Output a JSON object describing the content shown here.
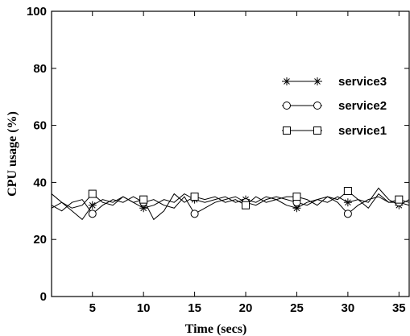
{
  "chart_data": {
    "type": "line",
    "title": "",
    "xlabel": "Time (secs)",
    "ylabel": "CPU usage (%)",
    "xlim": [
      1,
      36
    ],
    "ylim": [
      0,
      100
    ],
    "xticks": [
      5,
      10,
      15,
      20,
      25,
      30,
      35
    ],
    "yticks": [
      0,
      20,
      40,
      60,
      80,
      100
    ],
    "grid": false,
    "legend_position": "right, upper-middle",
    "x": [
      1,
      2,
      3,
      4,
      5,
      6,
      7,
      8,
      9,
      10,
      11,
      12,
      13,
      14,
      15,
      16,
      17,
      18,
      19,
      20,
      21,
      22,
      23,
      24,
      25,
      26,
      27,
      28,
      29,
      30,
      31,
      32,
      33,
      34,
      35,
      36
    ],
    "series": [
      {
        "name": "service3",
        "marker": "asterisk",
        "values": [
          31,
          33,
          30,
          27,
          32,
          34,
          33,
          35,
          33,
          31,
          32,
          34,
          33,
          36,
          34,
          33,
          34,
          35,
          33,
          34,
          33,
          35,
          34,
          32,
          31,
          33,
          34,
          33,
          35,
          33,
          34,
          33,
          38,
          34,
          32,
          34
        ]
      },
      {
        "name": "service2",
        "marker": "circle",
        "values": [
          32,
          30,
          33,
          34,
          29,
          32,
          34,
          33,
          35,
          33,
          34,
          32,
          31,
          35,
          29,
          31,
          33,
          34,
          35,
          33,
          32,
          34,
          35,
          34,
          33,
          32,
          34,
          35,
          33,
          29,
          32,
          34,
          35,
          33,
          33,
          32
        ]
      },
      {
        "name": "service1",
        "marker": "square",
        "values": [
          36,
          33,
          31,
          32,
          36,
          33,
          32,
          35,
          33,
          34,
          27,
          30,
          36,
          33,
          35,
          34,
          35,
          33,
          34,
          32,
          35,
          33,
          34,
          35,
          35,
          34,
          32,
          35,
          34,
          37,
          34,
          31,
          36,
          33,
          34,
          33
        ]
      }
    ]
  },
  "colors": {
    "background": "#ffffff",
    "axes": "#000000",
    "series": "#000000"
  }
}
